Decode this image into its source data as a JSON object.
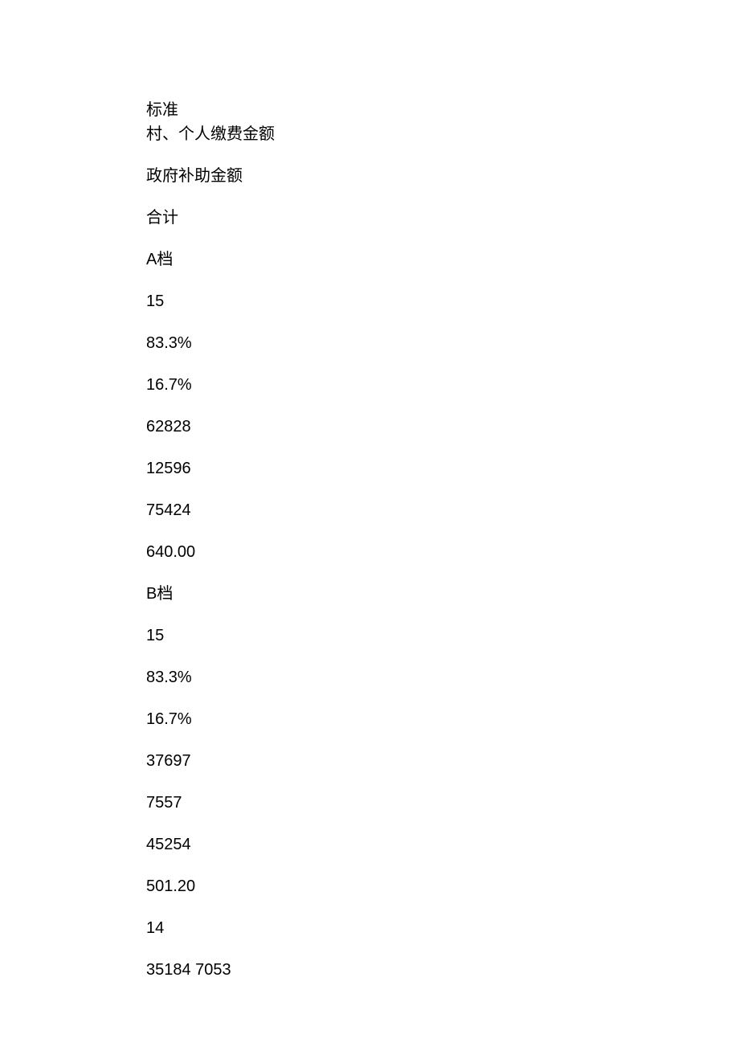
{
  "lines": {
    "l1": "标准",
    "l2": "村、个人缴费金额",
    "l3": "政府补助金额",
    "l4": "合计",
    "l5": "A档",
    "l6": "15",
    "l7": "83.3%",
    "l8": "16.7%",
    "l9": "62828",
    "l10": "12596",
    "l11": "75424",
    "l12": "640.00",
    "l13": "B档",
    "l14": "15",
    "l15": "83.3%",
    "l16": "16.7%",
    "l17": "37697",
    "l18": "7557",
    "l19": "45254",
    "l20": "501.20",
    "l21": "14",
    "l22": "35184 7053"
  },
  "style": {
    "background_color": "#ffffff",
    "text_color": "#000000",
    "font_size": 20,
    "font_family": "Microsoft YaHei"
  }
}
